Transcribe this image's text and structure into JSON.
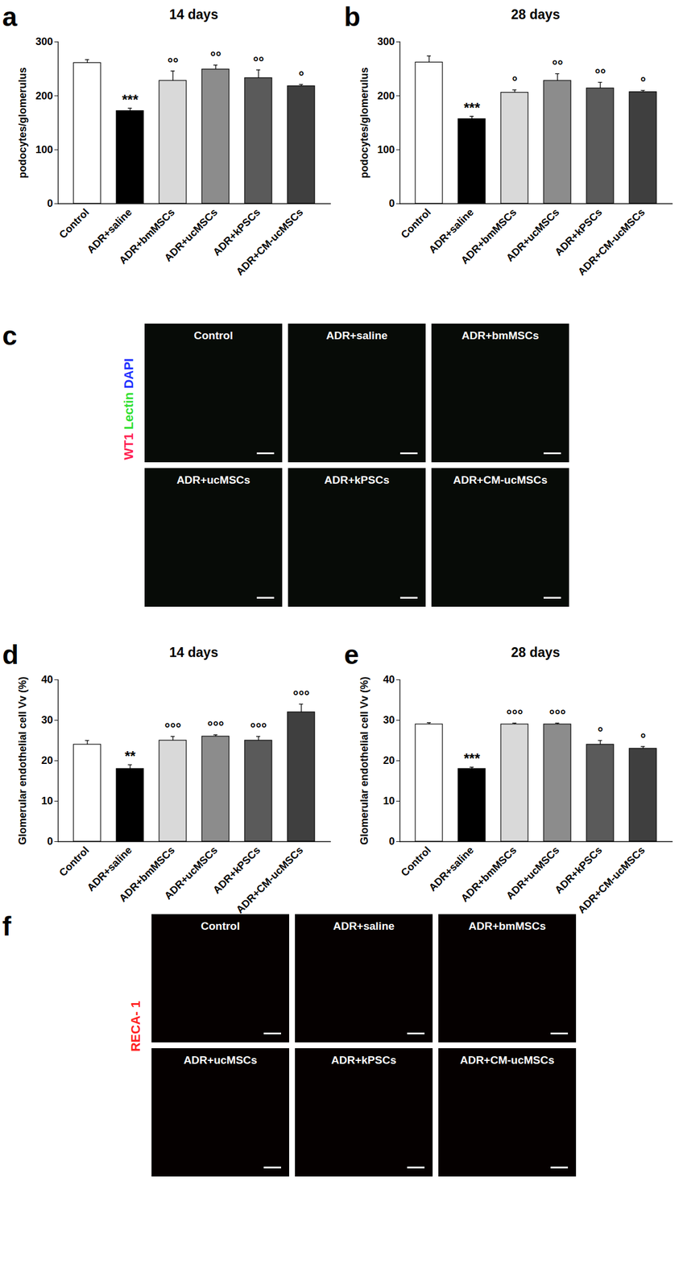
{
  "chart_data": [
    {
      "type": "bar",
      "panel_label": "a",
      "title": "14 days",
      "y_label": "podocytes/glomerulus",
      "categories": [
        "Control",
        "ADR+saline",
        "ADR+bmMSCs",
        "ADR+ucMSCs",
        "ADR+kPSCs",
        "ADR+CM-ucMSCs"
      ],
      "values": [
        261,
        172,
        228,
        249,
        233,
        218
      ],
      "errors": [
        6,
        5,
        18,
        8,
        15,
        3
      ],
      "significance": [
        null,
        "***",
        "°°",
        "°°",
        "°°",
        "°"
      ],
      "colors": [
        "#ffffff",
        "#000000",
        "#d9d9d9",
        "#8c8c8c",
        "#5a5a5a",
        "#3f3f3f"
      ],
      "ylim": [
        0,
        300
      ],
      "yticks": [
        0,
        100,
        200,
        300
      ],
      "grid": false
    },
    {
      "type": "bar",
      "panel_label": "b",
      "title": "28 days",
      "y_label": "podocytes/glomerulus",
      "categories": [
        "Control",
        "ADR+saline",
        "ADR+bmMSCs",
        "ADR+ucMSCs",
        "ADR+kPSCs",
        "ADR+CM-ucMSCs"
      ],
      "values": [
        262,
        157,
        206,
        228,
        214,
        207
      ],
      "errors": [
        12,
        5,
        5,
        13,
        11,
        3
      ],
      "significance": [
        null,
        "***",
        "°",
        "°°",
        "°°",
        "°"
      ],
      "colors": [
        "#ffffff",
        "#000000",
        "#d9d9d9",
        "#8c8c8c",
        "#5a5a5a",
        "#3f3f3f"
      ],
      "ylim": [
        0,
        300
      ],
      "yticks": [
        0,
        100,
        200,
        300
      ],
      "grid": false
    },
    {
      "type": "bar",
      "panel_label": "d",
      "title": "14 days",
      "y_label": "Glomerular endothelial cell Vv (%)",
      "categories": [
        "Control",
        "ADR+saline",
        "ADR+bmMSCs",
        "ADR+ucMSCs",
        "ADR+kPSCs",
        "ADR+CM-ucMSCs"
      ],
      "values": [
        24,
        18,
        25,
        26,
        25,
        32
      ],
      "errors": [
        1,
        1,
        1,
        0.4,
        1,
        2
      ],
      "significance": [
        null,
        "**",
        "°°°",
        "°°°",
        "°°°",
        "°°°"
      ],
      "colors": [
        "#ffffff",
        "#000000",
        "#d9d9d9",
        "#8c8c8c",
        "#5a5a5a",
        "#3f3f3f"
      ],
      "ylim": [
        0,
        40
      ],
      "yticks": [
        0,
        10,
        20,
        30,
        40
      ],
      "grid": false
    },
    {
      "type": "bar",
      "panel_label": "e",
      "title": "28 days",
      "y_label": "Glomerular endothelial cell Vv (%)",
      "categories": [
        "Control",
        "ADR+saline",
        "ADR+bmMSCs",
        "ADR+ucMSCs",
        "ADR+kPSCs",
        "ADR+CM-ucMSCs"
      ],
      "values": [
        29,
        18,
        29,
        29,
        24,
        23
      ],
      "errors": [
        0.4,
        0.4,
        0.3,
        0.3,
        1,
        0.5
      ],
      "significance": [
        null,
        "***",
        "°°°",
        "°°°",
        "°",
        "°"
      ],
      "colors": [
        "#ffffff",
        "#000000",
        "#d9d9d9",
        "#8c8c8c",
        "#5a5a5a",
        "#3f3f3f"
      ],
      "ylim": [
        0,
        40
      ],
      "yticks": [
        0,
        10,
        20,
        30,
        40
      ],
      "grid": false
    }
  ],
  "image_panels": [
    {
      "panel_label": "c",
      "stain_labels": [
        {
          "text": "WT1",
          "color": "#ff2050"
        },
        {
          "text": "Lectin",
          "color": "#30e030"
        },
        {
          "text": "DAPI",
          "color": "#2030ff"
        }
      ],
      "images": [
        "Control",
        "ADR+saline",
        "ADR+bmMSCs",
        "ADR+ucMSCs",
        "ADR+kPSCs",
        "ADR+CM-ucMSCs"
      ]
    },
    {
      "panel_label": "f",
      "stain_labels": [
        {
          "text": "RECA- 1",
          "color": "#ff2020"
        }
      ],
      "images": [
        "Control",
        "ADR+saline",
        "ADR+bmMSCs",
        "ADR+ucMSCs",
        "ADR+kPSCs",
        "ADR+CM-ucMSCs"
      ]
    }
  ]
}
